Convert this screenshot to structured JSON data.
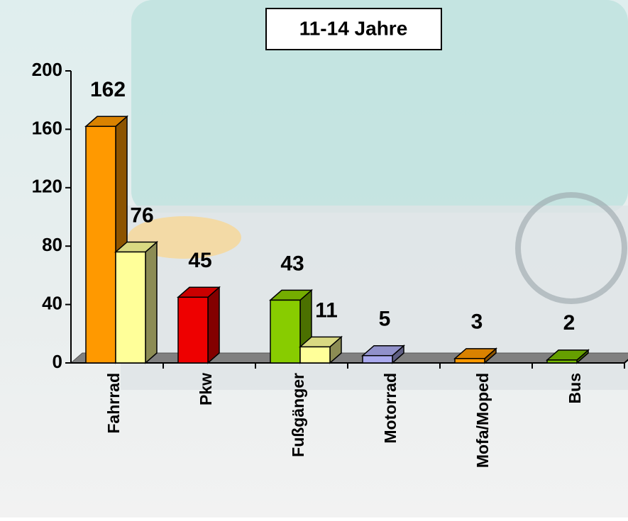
{
  "chart_data": {
    "type": "bar3d",
    "title": "11-14 Jahre",
    "categories": [
      "Fahrrad",
      "Pkw",
      "Fußgänger",
      "Motorrad",
      "Mofa/Moped",
      "Bus"
    ],
    "series": [
      {
        "colors": [
          "#ff9900",
          "#ee0000",
          "#88cc00",
          "#aaaaee",
          "#ff9900",
          "#77bb00"
        ],
        "values": [
          162,
          45,
          43,
          5,
          3,
          2
        ]
      },
      {
        "colors": [
          "#ffff99",
          "#ffff99",
          "#ffff99",
          "#ffff99",
          "#ffff99",
          "#ffff99"
        ],
        "values": [
          76,
          null,
          11,
          null,
          null,
          null
        ]
      }
    ],
    "ylim": [
      0,
      200
    ],
    "yticks": [
      0,
      40,
      80,
      120,
      160,
      200
    ]
  }
}
